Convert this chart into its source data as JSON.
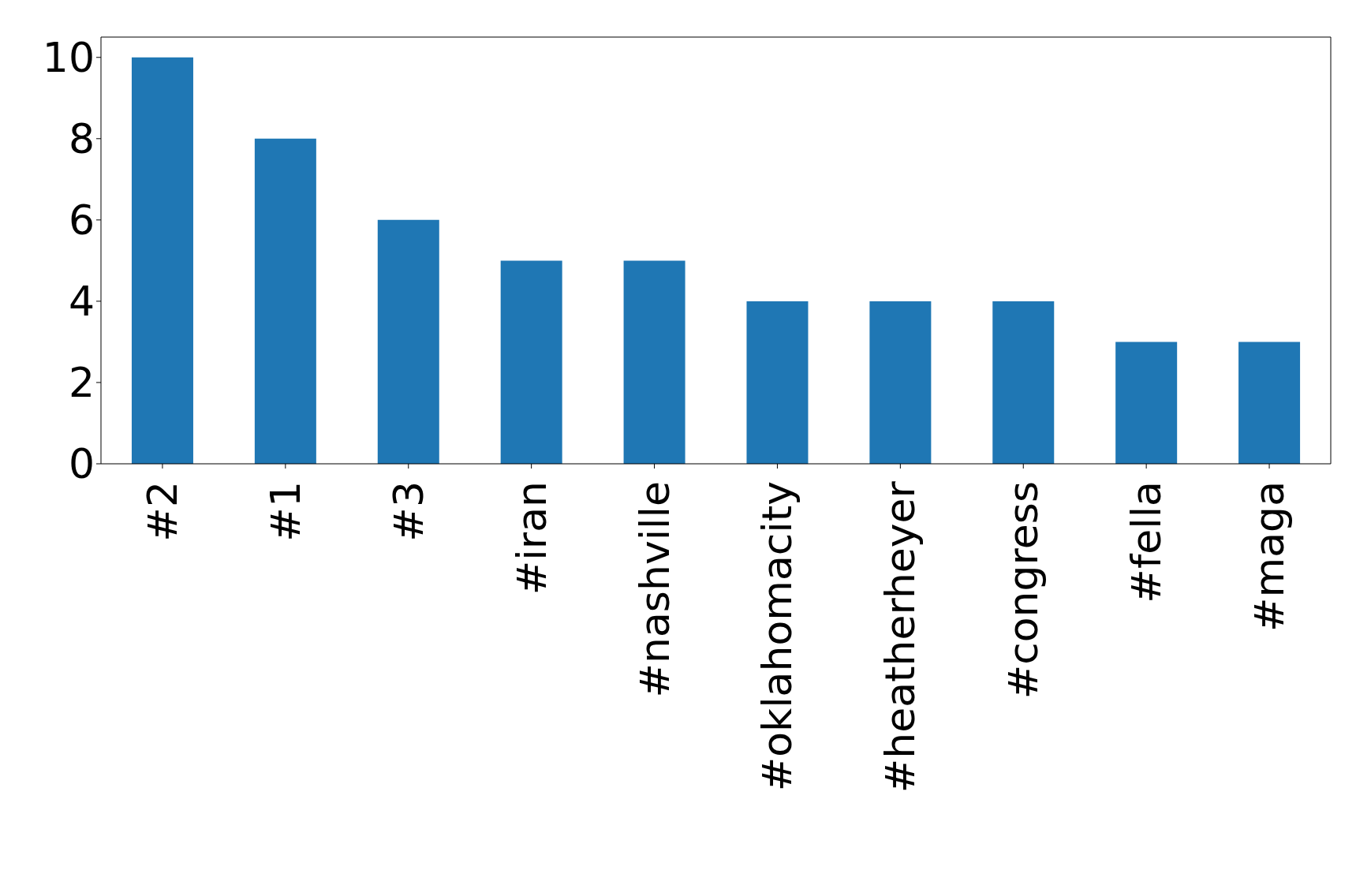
{
  "chart_data": {
    "type": "bar",
    "categories": [
      "#2",
      "#1",
      "#3",
      "#iran",
      "#nashville",
      "#oklahomacity",
      "#heatherheyer",
      "#congress",
      "#fella",
      "#maga"
    ],
    "values": [
      10,
      8,
      6,
      5,
      5,
      4,
      4,
      4,
      3,
      3
    ],
    "color": "#1f77b4",
    "ylim": [
      0,
      10.5
    ],
    "yticks": [
      0,
      2,
      4,
      6,
      8,
      10
    ],
    "grid": false,
    "legend": false
  }
}
